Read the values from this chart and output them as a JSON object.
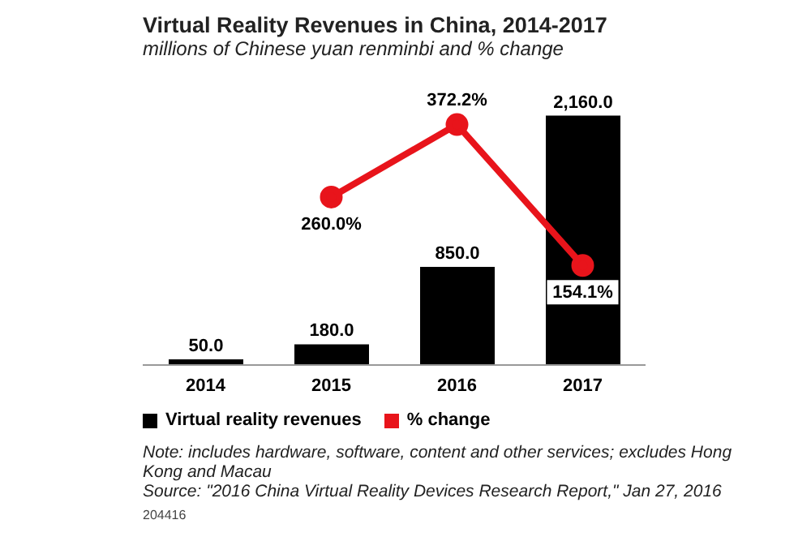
{
  "chart_data": {
    "type": "bar",
    "title": "Virtual Reality Revenues in China, 2014-2017",
    "subtitle": "millions of Chinese yuan renminbi and % change",
    "categories": [
      "2014",
      "2015",
      "2016",
      "2017"
    ],
    "series": [
      {
        "name": "Virtual reality revenues",
        "color": "#000000",
        "values": [
          50,
          180,
          850,
          2160
        ],
        "value_labels": [
          "50.0",
          "180.0",
          "850.0",
          "2,160.0"
        ]
      },
      {
        "name": "% change",
        "type": "line",
        "axis": "y2",
        "color": "#e8141b",
        "values": [
          null,
          260,
          372.2,
          154.1
        ],
        "value_labels": [
          null,
          "260.0%",
          "372.2%",
          "154.1%"
        ]
      }
    ],
    "marker": "circle",
    "legend": "bottom",
    "annotations": [
      "Note: includes hardware, software, content and other services; excludes Hong Kong and Macau",
      "Source: \"2016 China Virtual Reality Devices Research Report,\" Jan 27, 2016",
      "204416"
    ]
  }
}
